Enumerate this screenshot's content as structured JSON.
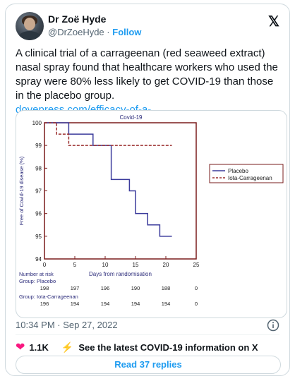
{
  "author": {
    "name": "Dr Zoë Hyde",
    "handle": "@DrZoeHyde",
    "separator": "·",
    "follow_label": "Follow"
  },
  "platform_logo": "𝕏",
  "tweet": {
    "text": "A clinical trial of a carrageenan (red seaweed extract) nasal spray found that healthcare workers who used the spray were 80% less likely to get COVID-19 than those in the placebo group.",
    "link": "dovepress.com/efficacy-of-a-..."
  },
  "figure": {
    "chart_data": {
      "type": "line",
      "title": "Covid-19",
      "xlabel": "Days from randomisation",
      "ylabel": "Free of Covid-19 disease (%)",
      "xlim": [
        0,
        25
      ],
      "ylim": [
        94,
        100
      ],
      "x_ticks": [
        "0",
        "5",
        "10",
        "15",
        "20",
        "25"
      ],
      "y_ticks": [
        "94",
        "95",
        "96",
        "97",
        "98",
        "99",
        "100"
      ],
      "grid": false,
      "legend_position": "right",
      "series": [
        {
          "name": "Placebo",
          "style": "solid",
          "color": "#3b3b9c",
          "points": [
            [
              0,
              100
            ],
            [
              4,
              100
            ],
            [
              4,
              99.5
            ],
            [
              8,
              99.5
            ],
            [
              8,
              99
            ],
            [
              11,
              99
            ],
            [
              11,
              97.5
            ],
            [
              14,
              97.5
            ],
            [
              14,
              97
            ],
            [
              15,
              97
            ],
            [
              15,
              96
            ],
            [
              17,
              96
            ],
            [
              17,
              95.5
            ],
            [
              19,
              95.5
            ],
            [
              19,
              95
            ],
            [
              21,
              95
            ]
          ]
        },
        {
          "name": "Iota-Carrageenan",
          "style": "dashed",
          "color": "#9b2f2f",
          "points": [
            [
              0,
              100
            ],
            [
              2,
              100
            ],
            [
              2,
              99.5
            ],
            [
              4,
              99.5
            ],
            [
              4,
              99
            ],
            [
              21,
              99
            ]
          ]
        }
      ],
      "risk_table": {
        "header": "Number at risk",
        "groups": [
          {
            "label": "Group: Placebo",
            "values": [
              "198",
              "197",
              "196",
              "190",
              "188",
              "0"
            ]
          },
          {
            "label": "Group: Iota-Carrageenan",
            "values": [
              "196",
              "194",
              "194",
              "194",
              "194",
              "0"
            ]
          }
        ]
      }
    }
  },
  "timestamp": "10:34 PM · Sep 27, 2022",
  "actions": {
    "like_count": "1.1K",
    "covid_info": "See the latest COVID-19 information on X"
  },
  "replies_button": "Read 37 replies",
  "colors": {
    "link": "#1d9bf0",
    "heart": "#f91880",
    "text": "#0f1419",
    "muted": "#536471",
    "chart_frame": "#7a1c1c"
  }
}
